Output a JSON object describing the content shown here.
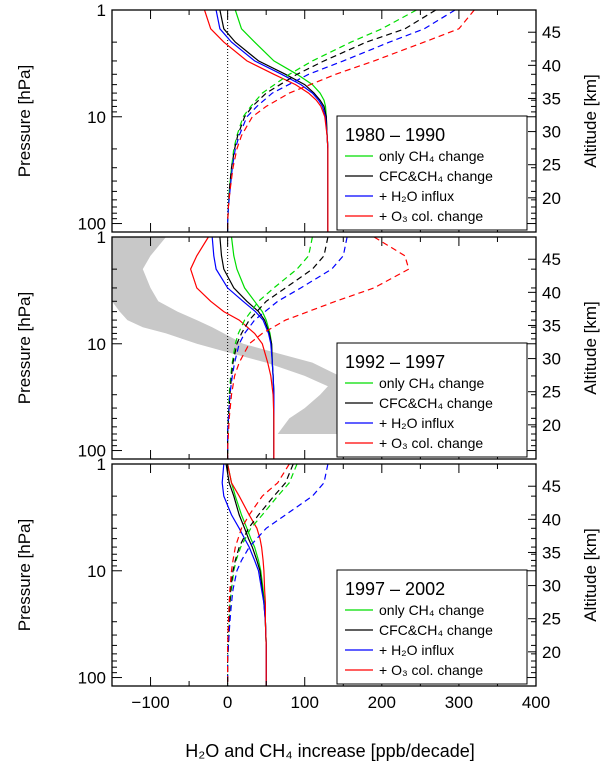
{
  "figure": {
    "xlabel": "H₂O and CH₄ increase [ppb/decade]",
    "x_ticks": [
      "−100",
      "0",
      "100",
      "200",
      "300",
      "400"
    ],
    "x_tick_values": [
      -100,
      0,
      100,
      200,
      300,
      400
    ],
    "xlim": [
      -150,
      400
    ],
    "ylabel_left": "Pressure [hPa]",
    "ylabel_right": "Altitude [km]",
    "p_ticks": [
      "1",
      "10",
      "100"
    ],
    "p_tick_values": [
      1,
      10,
      100
    ],
    "ylim_pressure": [
      120,
      1
    ],
    "alt_ticks": [
      "45",
      "40",
      "35",
      "30",
      "25",
      "20"
    ],
    "alt_tick_values": [
      45,
      40,
      35,
      30,
      25,
      20
    ]
  },
  "colors": {
    "only_ch4": "#00dd00",
    "cfc_ch4": "#000000",
    "h2o_influx": "#0000ff",
    "o3_col": "#ff0000",
    "shade": "#c8c8c8"
  },
  "chart_data": [
    {
      "type": "line",
      "title": "1980 – 1990",
      "y_axis": "pressure_hPa",
      "legend": [
        "only CH₄ change",
        "CFC&CH₄ change",
        "+ H₂O influx",
        "+ O₃ col. change"
      ],
      "note": "solid = H2O increase, dashed = CH4 increase",
      "series": [
        {
          "name": "only CH₄ change",
          "style": "solid",
          "p": [
            1,
            1.5,
            2,
            3,
            4,
            5,
            6,
            7,
            8,
            10,
            15,
            20,
            30,
            50,
            70,
            100,
            120
          ],
          "values": [
            10,
            18,
            35,
            60,
            90,
            110,
            120,
            125,
            127,
            128,
            129,
            130,
            130,
            130,
            130,
            130,
            130
          ]
        },
        {
          "name": "CFC&CH₄ change",
          "style": "solid",
          "p": [
            1,
            1.5,
            2,
            3,
            4,
            5,
            6,
            7,
            8,
            10,
            15,
            20,
            30,
            50,
            70,
            100,
            120
          ],
          "values": [
            -10,
            -5,
            10,
            40,
            75,
            100,
            112,
            120,
            125,
            128,
            129,
            130,
            130,
            130,
            130,
            130,
            130
          ]
        },
        {
          "name": "+ H₂O influx",
          "style": "solid",
          "p": [
            1,
            1.5,
            2,
            3,
            4,
            5,
            6,
            7,
            8,
            10,
            15,
            20,
            30,
            50,
            70,
            100,
            120
          ],
          "values": [
            -15,
            -10,
            5,
            35,
            70,
            95,
            110,
            118,
            123,
            127,
            129,
            130,
            130,
            130,
            130,
            130,
            130
          ]
        },
        {
          "name": "+ O₃ col. change",
          "style": "solid",
          "p": [
            1,
            1.5,
            2,
            3,
            4,
            5,
            6,
            7,
            8,
            10,
            15,
            20,
            30,
            50,
            70,
            100,
            120
          ],
          "values": [
            -30,
            -22,
            -5,
            25,
            60,
            88,
            105,
            115,
            121,
            126,
            129,
            130,
            130,
            130,
            130,
            130,
            130
          ]
        },
        {
          "name": "only CH₄ change",
          "style": "dashed",
          "p": [
            1,
            1.5,
            2,
            3,
            4,
            6,
            8,
            10,
            15,
            20,
            30,
            50,
            70,
            100,
            120
          ],
          "values": [
            245,
            200,
            160,
            110,
            80,
            45,
            30,
            20,
            12,
            8,
            5,
            2,
            1,
            0,
            0
          ]
        },
        {
          "name": "CFC&CH₄ change",
          "style": "dashed",
          "p": [
            1,
            1.5,
            2,
            3,
            4,
            6,
            8,
            10,
            15,
            20,
            30,
            50,
            70,
            100,
            120
          ],
          "values": [
            270,
            230,
            180,
            125,
            90,
            50,
            32,
            22,
            13,
            9,
            5,
            2,
            1,
            0,
            0
          ]
        },
        {
          "name": "+ H₂O influx",
          "style": "dashed",
          "p": [
            1,
            1.5,
            2,
            3,
            4,
            6,
            8,
            10,
            15,
            20,
            30,
            50,
            70,
            100,
            120
          ],
          "values": [
            295,
            255,
            210,
            150,
            105,
            58,
            38,
            25,
            15,
            10,
            6,
            3,
            1,
            0,
            0
          ]
        },
        {
          "name": "+ O₃ col. change",
          "style": "dashed",
          "p": [
            1,
            1.5,
            2,
            3,
            4,
            6,
            8,
            10,
            15,
            20,
            30,
            50,
            70,
            100,
            120
          ],
          "values": [
            320,
            300,
            255,
            190,
            140,
            80,
            50,
            32,
            18,
            12,
            7,
            3,
            1,
            0,
            0
          ]
        }
      ]
    },
    {
      "type": "line",
      "title": "1992 – 1997",
      "y_axis": "pressure_hPa",
      "legend": [
        "only CH₄ change",
        "CFC&CH₄ change",
        "+ H₂O influx",
        "+ O₃ col. change"
      ],
      "shaded_band": {
        "p": [
          1,
          1.5,
          2,
          3,
          4,
          5,
          6,
          7,
          8,
          10,
          12,
          15,
          20,
          25,
          30,
          40,
          50,
          70
        ],
        "left": [
          -150,
          -150,
          -150,
          -150,
          -150,
          -140,
          -130,
          -110,
          -80,
          -40,
          0,
          50,
          100,
          130,
          120,
          100,
          80,
          65
        ],
        "right": [
          -80,
          -100,
          -110,
          -100,
          -90,
          -65,
          -40,
          -20,
          -5,
          20,
          60,
          110,
          145,
          155,
          155,
          150,
          150,
          150
        ]
      },
      "series": [
        {
          "name": "only CH₄ change",
          "style": "solid",
          "p": [
            1,
            1.5,
            2,
            3,
            4,
            5,
            6,
            8,
            10,
            15,
            20,
            30,
            50,
            70,
            100,
            120
          ],
          "values": [
            5,
            8,
            12,
            22,
            35,
            45,
            50,
            55,
            57,
            58,
            59,
            60,
            60,
            60,
            60,
            60
          ]
        },
        {
          "name": "CFC&CH₄ change",
          "style": "solid",
          "p": [
            1,
            1.5,
            2,
            3,
            4,
            5,
            6,
            8,
            10,
            15,
            20,
            30,
            50,
            70,
            100,
            120
          ],
          "values": [
            -10,
            -8,
            -5,
            8,
            25,
            40,
            48,
            54,
            57,
            58,
            59,
            60,
            60,
            60,
            60,
            60
          ]
        },
        {
          "name": "+ H₂O influx",
          "style": "solid",
          "p": [
            1,
            1.5,
            2,
            3,
            4,
            5,
            6,
            8,
            10,
            15,
            20,
            30,
            50,
            70,
            100,
            120
          ],
          "values": [
            -20,
            -18,
            -15,
            0,
            20,
            36,
            46,
            53,
            56,
            58,
            59,
            60,
            60,
            60,
            60,
            60
          ]
        },
        {
          "name": "+ O₃ col. change",
          "style": "solid",
          "p": [
            1,
            1.5,
            2,
            3,
            4,
            5,
            6,
            8,
            10,
            15,
            20,
            30,
            50,
            70,
            100,
            120
          ],
          "values": [
            -25,
            -40,
            -48,
            -40,
            -22,
            -5,
            15,
            35,
            45,
            52,
            56,
            59,
            60,
            60,
            60,
            60
          ]
        },
        {
          "name": "only CH₄ change",
          "style": "dashed",
          "p": [
            1,
            1.5,
            2,
            3,
            4,
            6,
            8,
            10,
            15,
            20,
            30,
            50,
            70,
            100,
            120
          ],
          "values": [
            110,
            105,
            90,
            60,
            40,
            22,
            14,
            10,
            6,
            4,
            2,
            1,
            0,
            0,
            0
          ]
        },
        {
          "name": "CFC&CH₄ change",
          "style": "dashed",
          "p": [
            1,
            1.5,
            2,
            3,
            4,
            6,
            8,
            10,
            15,
            20,
            30,
            50,
            70,
            100,
            120
          ],
          "values": [
            130,
            125,
            110,
            75,
            50,
            28,
            18,
            12,
            7,
            5,
            3,
            1,
            0,
            0,
            0
          ]
        },
        {
          "name": "+ H₂O influx",
          "style": "dashed",
          "p": [
            1,
            1.5,
            2,
            3,
            4,
            6,
            8,
            10,
            15,
            20,
            30,
            50,
            70,
            100,
            120
          ],
          "values": [
            155,
            150,
            135,
            95,
            65,
            35,
            22,
            15,
            9,
            6,
            3,
            1,
            0,
            0,
            0
          ]
        },
        {
          "name": "+ O₃ col. change",
          "style": "dashed",
          "p": [
            1,
            1.5,
            2,
            3,
            4,
            6,
            8,
            10,
            15,
            20,
            30,
            50,
            70,
            100,
            120
          ],
          "values": [
            190,
            230,
            235,
            190,
            140,
            75,
            45,
            28,
            15,
            9,
            5,
            2,
            1,
            0,
            0
          ]
        }
      ]
    },
    {
      "type": "line",
      "title": "1997 – 2002",
      "y_axis": "pressure_hPa",
      "legend": [
        "only CH₄ change",
        "CFC&CH₄ change",
        "+ H₂O influx",
        "+ O₃ col. change"
      ],
      "series": [
        {
          "name": "only CH₄ change",
          "style": "solid",
          "p": [
            1,
            1.5,
            2,
            3,
            4,
            5,
            6,
            8,
            10,
            15,
            20,
            30,
            50,
            70,
            100,
            120
          ],
          "values": [
            0,
            5,
            10,
            18,
            25,
            30,
            35,
            40,
            43,
            46,
            48,
            49,
            50,
            50,
            50,
            50
          ]
        },
        {
          "name": "CFC&CH₄ change",
          "style": "solid",
          "p": [
            1,
            1.5,
            2,
            3,
            4,
            5,
            6,
            8,
            10,
            15,
            20,
            30,
            50,
            70,
            100,
            120
          ],
          "values": [
            -2,
            2,
            8,
            15,
            22,
            27,
            32,
            38,
            42,
            45,
            47,
            49,
            50,
            50,
            50,
            50
          ]
        },
        {
          "name": "+ H₂O influx",
          "style": "solid",
          "p": [
            1,
            1.5,
            2,
            3,
            4,
            5,
            6,
            8,
            10,
            15,
            20,
            30,
            50,
            70,
            100,
            120
          ],
          "values": [
            -5,
            -7,
            -5,
            5,
            15,
            22,
            28,
            35,
            40,
            44,
            47,
            49,
            50,
            50,
            50,
            50
          ]
        },
        {
          "name": "+ O₃ col. change",
          "style": "solid",
          "p": [
            1,
            1.5,
            2,
            3,
            4,
            5,
            6,
            8,
            10,
            15,
            20,
            30,
            50,
            70,
            100,
            120
          ],
          "values": [
            0,
            5,
            15,
            28,
            38,
            42,
            44,
            46,
            47,
            48,
            49,
            49,
            50,
            50,
            50,
            50
          ]
        },
        {
          "name": "only CH₄ change",
          "style": "dashed",
          "p": [
            1,
            1.5,
            2,
            3,
            4,
            6,
            8,
            10,
            15,
            20,
            30,
            50,
            70,
            100,
            120
          ],
          "values": [
            90,
            80,
            65,
            45,
            30,
            17,
            11,
            8,
            5,
            3,
            2,
            1,
            0,
            0,
            0
          ]
        },
        {
          "name": "CFC&CH₄ change",
          "style": "dashed",
          "p": [
            1,
            1.5,
            2,
            3,
            4,
            6,
            8,
            10,
            15,
            20,
            30,
            50,
            70,
            100,
            120
          ],
          "values": [
            85,
            75,
            60,
            40,
            27,
            15,
            10,
            7,
            4,
            3,
            2,
            1,
            0,
            0,
            0
          ]
        },
        {
          "name": "+ H₂O influx",
          "style": "dashed",
          "p": [
            1,
            1.5,
            2,
            3,
            4,
            6,
            8,
            10,
            15,
            20,
            30,
            50,
            70,
            100,
            120
          ],
          "values": [
            130,
            125,
            110,
            75,
            50,
            28,
            18,
            12,
            7,
            5,
            3,
            1,
            0,
            0,
            0
          ]
        },
        {
          "name": "+ O₃ col. change",
          "style": "dashed",
          "p": [
            1,
            1.5,
            2,
            3,
            4,
            6,
            8,
            10,
            15,
            20,
            30,
            50,
            70,
            100,
            120
          ],
          "values": [
            80,
            65,
            45,
            28,
            18,
            10,
            7,
            5,
            3,
            2,
            1,
            0,
            0,
            0,
            0
          ]
        }
      ]
    }
  ]
}
